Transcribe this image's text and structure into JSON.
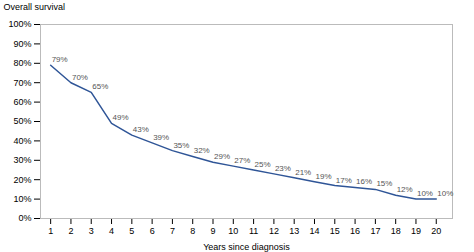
{
  "chart_data": {
    "type": "line",
    "x": [
      1,
      2,
      3,
      4,
      5,
      6,
      7,
      8,
      9,
      10,
      11,
      12,
      13,
      14,
      15,
      16,
      17,
      18,
      19,
      20
    ],
    "values": [
      79,
      70,
      65,
      49,
      43,
      39,
      35,
      32,
      29,
      27,
      25,
      23,
      21,
      19,
      17,
      16,
      15,
      12,
      10,
      10
    ],
    "value_labels": [
      "79%",
      "70%",
      "65%",
      "49%",
      "43%",
      "39%",
      "35%",
      "32%",
      "29%",
      "27%",
      "25%",
      "23%",
      "21%",
      "19%",
      "17%",
      "16%",
      "15%",
      "12%",
      "10%",
      "10%"
    ],
    "data_labels": true,
    "color": "#2f5597",
    "xlabel": "Years since diagnosis",
    "ylabel": "Overall survival",
    "xlim": [
      0.5,
      20.8
    ],
    "ylim": [
      0,
      100
    ],
    "xticks": [
      1,
      2,
      3,
      4,
      5,
      6,
      7,
      8,
      9,
      10,
      11,
      12,
      13,
      14,
      15,
      16,
      17,
      18,
      19,
      20
    ],
    "yticks": [
      {
        "value": 0,
        "label": "0%"
      },
      {
        "value": 10,
        "label": "10%"
      },
      {
        "value": 20,
        "label": "20%"
      },
      {
        "value": 30,
        "label": "30%"
      },
      {
        "value": 40,
        "label": "40%"
      },
      {
        "value": 50,
        "label": "50%"
      },
      {
        "value": 60,
        "label": "60%"
      },
      {
        "value": 70,
        "label": "70%"
      },
      {
        "value": 80,
        "label": "80%"
      },
      {
        "value": 90,
        "label": "90%"
      },
      {
        "value": 100,
        "label": "100%"
      }
    ],
    "grid": false
  }
}
